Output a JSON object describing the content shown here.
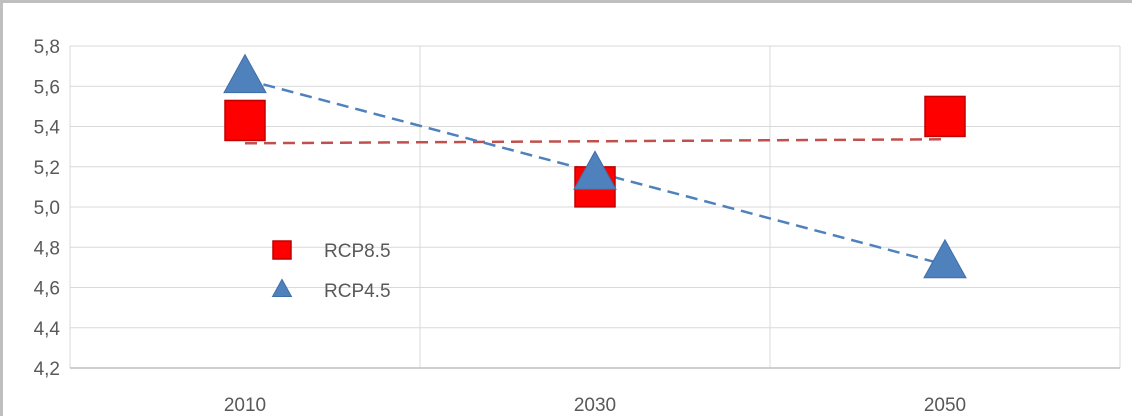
{
  "chart_data": {
    "type": "scatter",
    "x_categories": [
      "2010",
      "2030",
      "2050"
    ],
    "y_tick_labels": [
      "4,2",
      "4,4",
      "4,6",
      "4,8",
      "5,0",
      "5,2",
      "5,4",
      "5,6",
      "5,8"
    ],
    "ylim": [
      4.2,
      5.8
    ],
    "grid": true,
    "legend_position": "left-center",
    "trendlines": "linear dashed",
    "series": [
      {
        "name": "RCP8.5",
        "marker": "square",
        "color": "#ff0000",
        "trend_color": "#c0504d",
        "values": [
          5.43,
          5.1,
          5.45
        ]
      },
      {
        "name": "RCP4.5",
        "marker": "triangle",
        "color": "#4f81bd",
        "trend_color": "#4f81bd",
        "values": [
          5.64,
          5.16,
          4.72
        ]
      }
    ]
  }
}
